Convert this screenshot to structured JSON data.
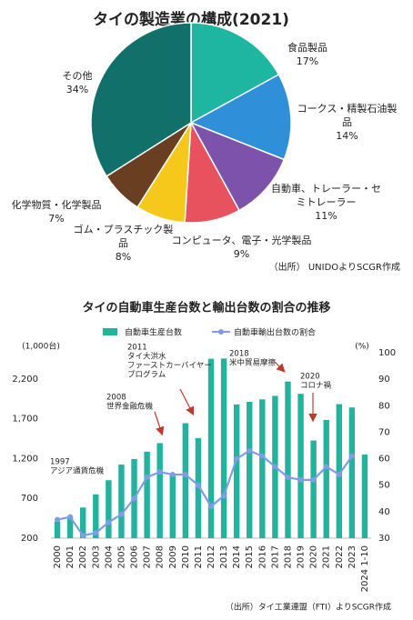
{
  "chart_data": [
    {
      "type": "pie",
      "title": "タイの製造業の構成(2021)",
      "categories": [
        "食品製品",
        "コークス・精製石油製品",
        "自動車、トレーラー・セミトレーラー",
        "コンピュータ、電子・光学製品",
        "ゴム・プラスチック製品",
        "化学物質・化学製品",
        "その他"
      ],
      "values": [
        17,
        14,
        11,
        9,
        8,
        7,
        34
      ],
      "value_labels": [
        "17%",
        "14%",
        "11%",
        "9%",
        "8%",
        "7%",
        "34%"
      ],
      "colors": [
        "#1fb6a1",
        "#2f8fd8",
        "#7c52ab",
        "#e8525e",
        "#f6c81c",
        "#6a3e20",
        "#11706a"
      ],
      "note": "（出所） UNIDOよりSCGR作成"
    },
    {
      "type": "bar-line",
      "title": "タイの自動車生産台数と輸出台数の割合の推移",
      "categories": [
        "2000",
        "2001",
        "2002",
        "2003",
        "2004",
        "2005",
        "2006",
        "2007",
        "2008",
        "2009",
        "2010",
        "2011",
        "2012",
        "2013",
        "2014",
        "2015",
        "2016",
        "2017",
        "2018",
        "2019",
        "2020",
        "2021",
        "2022",
        "2023",
        "2024 1-10"
      ],
      "series": [
        {
          "name": "自動車生産台数",
          "type": "bar",
          "color": "#22b29e",
          "values": [
            411,
            459,
            585,
            751,
            928,
            1125,
            1194,
            1287,
            1394,
            999,
            1645,
            1458,
            2454,
            2457,
            1880,
            1913,
            1944,
            1988,
            2168,
            2014,
            1427,
            1686,
            1884,
            1842,
            1250
          ]
        },
        {
          "name": "自動車輸出台数の割合",
          "type": "line",
          "axis": "y2",
          "color": "#7f9ce6",
          "values": [
            37,
            38,
            31,
            32,
            36,
            39,
            45,
            53,
            55,
            54,
            54,
            50,
            42,
            46,
            60,
            63,
            61,
            57,
            53,
            52,
            52,
            57,
            54,
            61,
            null
          ]
        }
      ],
      "ylabel": "(1,000台)",
      "y2label": "(%)",
      "ylim": [
        200,
        2530
      ],
      "yticks": [
        200,
        700,
        {
          "value": 1200,
          "label": "1,200"
        },
        {
          "value": 1700,
          "label": "1,700"
        },
        {
          "value": 2200,
          "label": "2,200"
        }
      ],
      "y2lim": [
        30,
        100
      ],
      "y2ticks": [
        30,
        40,
        50,
        60,
        70,
        80,
        90,
        100
      ],
      "annotations": [
        [
          "1997",
          "アジア通貨危機"
        ],
        [
          "2008",
          "世界金融危機"
        ],
        [
          "2011",
          "タイ大洪水",
          "ファーストカーバイヤー",
          "プログラム"
        ],
        [
          "2018",
          "米中貿易摩擦"
        ],
        [
          "2020",
          "コロナ禍"
        ]
      ],
      "note": "（出所）タイ工業連盟（FTI）よりSCGR作成"
    }
  ]
}
